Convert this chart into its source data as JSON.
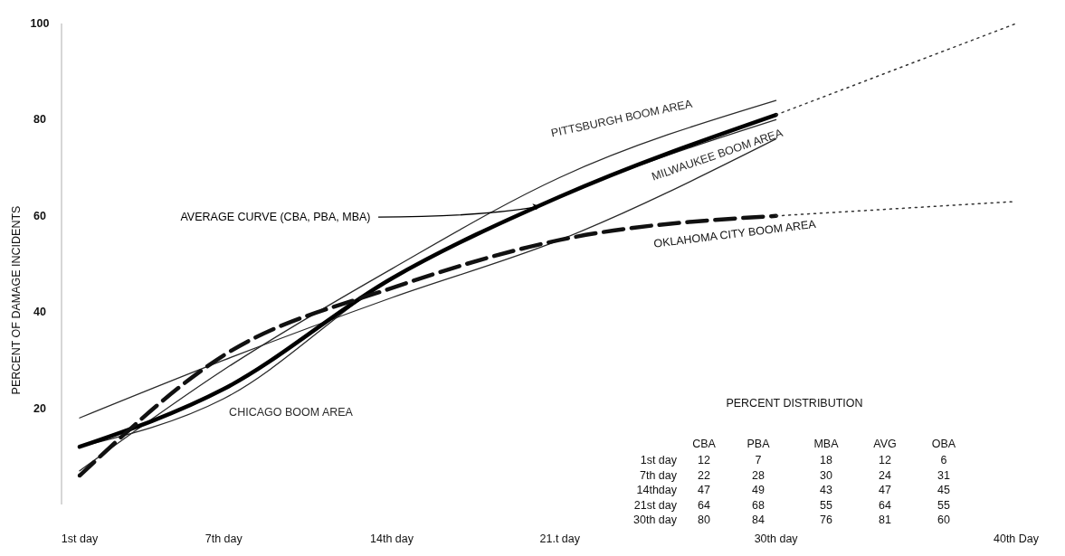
{
  "chart_data": [
    {
      "type": "line",
      "ylabel": "PERCENT OF DAMAGE INCIDENTS",
      "x": [
        1,
        7,
        14,
        21,
        30,
        40
      ],
      "xlim": [
        1,
        40
      ],
      "xticks": [
        {
          "value": 1,
          "label": "1st day"
        },
        {
          "value": 7,
          "label": "7th day"
        },
        {
          "value": 14,
          "label": "14th day"
        },
        {
          "value": 21,
          "label": "21.t day"
        },
        {
          "value": 30,
          "label": "30th day"
        },
        {
          "value": 40,
          "label": "40th Day"
        }
      ],
      "ylim": [
        0,
        100
      ],
      "yticks": [
        20,
        40,
        60,
        80,
        100
      ],
      "grid": false,
      "legend": false,
      "marker": "none",
      "series": [
        {
          "name": "CHICAGO BOOM AREA",
          "color": "#2a2a2a",
          "values": [
            12,
            22,
            47,
            64,
            80,
            null
          ]
        },
        {
          "name": "PITTSBURGH BOOM AREA",
          "color": "#2a2a2a",
          "values": [
            7,
            28,
            49,
            68,
            84,
            null
          ]
        },
        {
          "name": "MILWAUKEE BOOM AREA",
          "color": "#2a2a2a",
          "values": [
            18,
            30,
            43,
            55,
            76,
            null
          ]
        },
        {
          "name": "AVERAGE CURVE (CBA, PBA, MBA)",
          "color": "#000000",
          "values": [
            12,
            24,
            47,
            64,
            81,
            null
          ]
        },
        {
          "name": "OKLAHOMA CITY BOOM AREA",
          "color": "#111111",
          "line_style": "dashed",
          "values": [
            6,
            31,
            45,
            55,
            60,
            null
          ]
        },
        {
          "color": "#333333",
          "line_style": "dotted",
          "values": [
            null,
            null,
            null,
            null,
            81,
            100
          ]
        },
        {
          "color": "#333333",
          "line_style": "dotted",
          "values": [
            null,
            null,
            null,
            null,
            60,
            63
          ]
        }
      ]
    },
    {
      "type": "other",
      "title": "PERCENT DISTRIBUTION",
      "annotations": [
        "CBA",
        "PBA",
        "MBA",
        "AVG",
        "OBA",
        "1st day",
        "12",
        "7",
        "18",
        "12",
        "6",
        "7th day",
        "22",
        "28",
        "30",
        "24",
        "31",
        "14thday",
        "47",
        "49",
        "43",
        "47",
        "45",
        "21st day",
        "64",
        "68",
        "55",
        "64",
        "55",
        "30th day",
        "80",
        "84",
        "76",
        "81",
        "60"
      ]
    }
  ]
}
